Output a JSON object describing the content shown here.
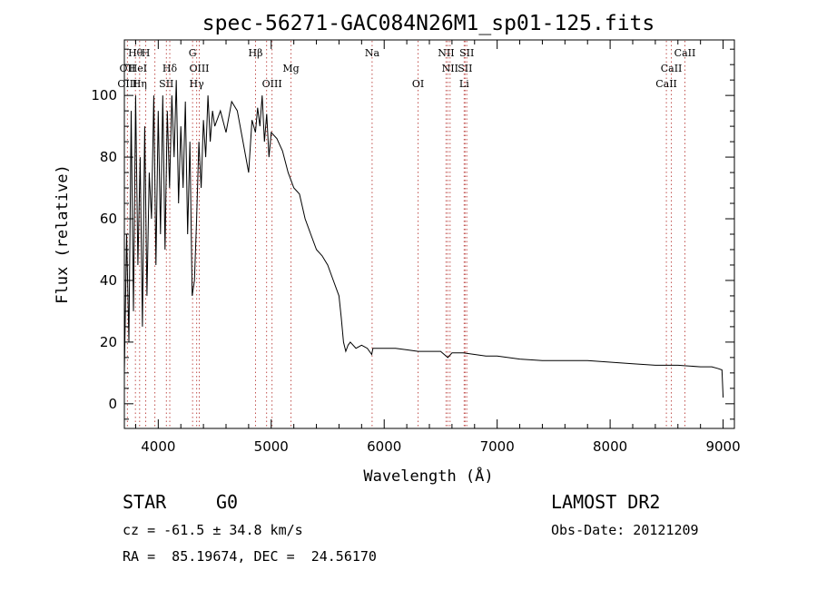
{
  "chart_data": {
    "type": "line",
    "title": "spec-56271-GAC084N26M1_sp01-125.fits",
    "xlabel": "Wavelength (Å)",
    "ylabel": "Flux (relative)",
    "xlim": [
      3700,
      9100
    ],
    "ylim": [
      -8,
      118
    ],
    "xticks": [
      4000,
      5000,
      6000,
      7000,
      8000,
      9000
    ],
    "yticks": [
      0,
      20,
      40,
      60,
      80,
      100
    ],
    "grid": false,
    "line_color": "#000000",
    "line_marker_color": "#c0504d",
    "series": [
      {
        "x": [
          3700,
          3720,
          3740,
          3760,
          3780,
          3800,
          3820,
          3840,
          3860,
          3880,
          3900,
          3920,
          3940,
          3960,
          3980,
          4000,
          4020,
          4040,
          4060,
          4080,
          4100,
          4120,
          4140,
          4160,
          4180,
          4200,
          4220,
          4240,
          4260,
          4280,
          4300,
          4320,
          4340,
          4360,
          4380,
          4400,
          4420,
          4440,
          4460,
          4480,
          4500,
          4550,
          4600,
          4650,
          4700,
          4750,
          4800,
          4830,
          4860,
          4880,
          4900,
          4920,
          4940,
          4960,
          4980,
          5000,
          5050,
          5100,
          5150,
          5200,
          5250,
          5300,
          5350,
          5400,
          5450,
          5500,
          5550,
          5600,
          5620,
          5640,
          5660,
          5680,
          5700,
          5750,
          5800,
          5850,
          5890,
          5900,
          5950,
          6000,
          6100,
          6200,
          6300,
          6400,
          6500,
          6563,
          6600,
          6700,
          6800,
          6900,
          7000,
          7200,
          7400,
          7600,
          7800,
          8000,
          8200,
          8400,
          8600,
          8800,
          8900,
          8950,
          8990,
          9000
        ],
        "y": [
          10,
          55,
          20,
          95,
          30,
          100,
          45,
          80,
          25,
          90,
          35,
          75,
          60,
          100,
          45,
          95,
          55,
          100,
          50,
          95,
          70,
          100,
          80,
          105,
          65,
          90,
          70,
          98,
          55,
          85,
          35,
          40,
          60,
          85,
          70,
          92,
          80,
          100,
          85,
          95,
          90,
          95,
          88,
          98,
          95,
          85,
          75,
          92,
          88,
          96,
          90,
          100,
          85,
          94,
          80,
          88,
          86,
          82,
          75,
          70,
          68,
          60,
          55,
          50,
          48,
          45,
          40,
          35,
          28,
          20,
          17,
          19,
          20,
          18,
          19,
          18,
          16,
          18,
          18,
          18,
          18,
          17.5,
          17,
          17,
          17,
          15,
          16.5,
          16.5,
          16,
          15.5,
          15.5,
          14.5,
          14,
          14,
          14,
          13.5,
          13,
          12.5,
          12.5,
          12,
          12,
          11.5,
          11,
          2
        ]
      }
    ],
    "line_labels": [
      {
        "text": "Hθ",
        "row": 1,
        "x": 3798
      },
      {
        "text": "H",
        "row": 1,
        "x": 3889
      },
      {
        "text": "G",
        "row": 1,
        "x": 4304
      },
      {
        "text": "Hβ",
        "row": 1,
        "x": 4861
      },
      {
        "text": "Na",
        "row": 1,
        "x": 5893
      },
      {
        "text": "NII",
        "row": 1,
        "x": 6548
      },
      {
        "text": "SII",
        "row": 1,
        "x": 6731
      },
      {
        "text": "CaII",
        "row": 1,
        "x": 8662
      },
      {
        "text": "OII",
        "row": 2,
        "x": 3727
      },
      {
        "text": "HeI",
        "row": 2,
        "x": 3820
      },
      {
        "text": "Hδ",
        "row": 2,
        "x": 4102
      },
      {
        "text": "OIII",
        "row": 2,
        "x": 4363
      },
      {
        "text": "Mg",
        "row": 2,
        "x": 5175
      },
      {
        "text": "NII",
        "row": 2,
        "x": 6583
      },
      {
        "text": "SII",
        "row": 2,
        "x": 6716
      },
      {
        "text": "CaII",
        "row": 2,
        "x": 8542
      },
      {
        "text": "OIII",
        "row": 3,
        "x": 3727
      },
      {
        "text": "Hη",
        "row": 3,
        "x": 3835
      },
      {
        "text": "SII",
        "row": 3,
        "x": 4072
      },
      {
        "text": "Hγ",
        "row": 3,
        "x": 4340
      },
      {
        "text": "OIII",
        "row": 3,
        "x": 5007
      },
      {
        "text": "OI",
        "row": 3,
        "x": 6300
      },
      {
        "text": "Li",
        "row": 3,
        "x": 6708
      },
      {
        "text": "CaII",
        "row": 3,
        "x": 8498
      }
    ],
    "line_markers": [
      3727,
      3798,
      3835,
      3889,
      3970,
      4072,
      4102,
      4304,
      4340,
      4363,
      4861,
      4959,
      5007,
      5175,
      5893,
      6300,
      6548,
      6563,
      6583,
      6708,
      6716,
      6731,
      8498,
      8542,
      8662
    ]
  },
  "info": {
    "class": "STAR",
    "subclass": "G0",
    "survey": "LAMOST DR2",
    "cz": "cz = -61.5 ± 34.8 km/s",
    "obs_date": "Obs-Date: 20121209",
    "coords": "RA =  85.19674, DEC =  24.56170"
  }
}
